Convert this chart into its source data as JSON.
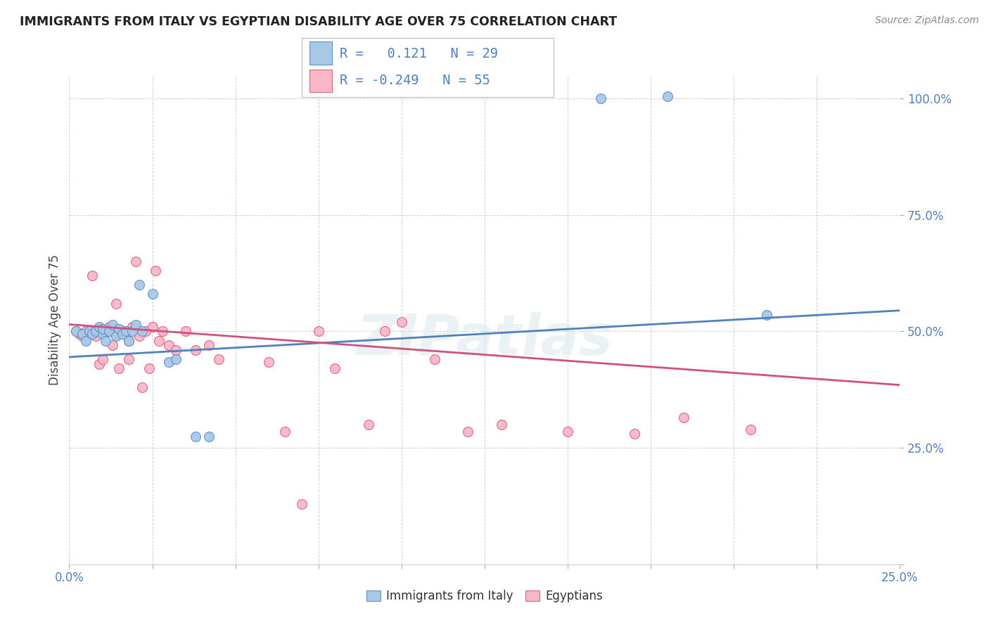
{
  "title": "IMMIGRANTS FROM ITALY VS EGYPTIAN DISABILITY AGE OVER 75 CORRELATION CHART",
  "source": "Source: ZipAtlas.com",
  "ylabel": "Disability Age Over 75",
  "xlim": [
    0.0,
    0.25
  ],
  "ylim": [
    0.0,
    1.05
  ],
  "ytick_vals": [
    0.0,
    0.25,
    0.5,
    0.75,
    1.0
  ],
  "xtick_vals": [
    0.0,
    0.025,
    0.05,
    0.075,
    0.1,
    0.125,
    0.15,
    0.175,
    0.2,
    0.225,
    0.25
  ],
  "blue_color": "#a8c8e8",
  "blue_edge": "#6090c8",
  "pink_color": "#f8b8c8",
  "pink_edge": "#e06080",
  "line_blue": "#5080c0",
  "line_pink": "#d05080",
  "tick_color": "#5080c0",
  "watermark": "ZIPatlas",
  "legend_R_blue": "0.121",
  "legend_N_blue": "29",
  "legend_R_pink": "-0.249",
  "legend_N_pink": "55",
  "italy_line_y0": 0.445,
  "italy_line_y1": 0.545,
  "egypt_line_y0": 0.515,
  "egypt_line_y1": 0.385,
  "italy_x": [
    0.002,
    0.004,
    0.005,
    0.006,
    0.007,
    0.008,
    0.009,
    0.01,
    0.01,
    0.011,
    0.012,
    0.013,
    0.014,
    0.015,
    0.016,
    0.017,
    0.018,
    0.019,
    0.02,
    0.021,
    0.022,
    0.025,
    0.03,
    0.032,
    0.038,
    0.042,
    0.16,
    0.18,
    0.21
  ],
  "italy_y": [
    0.5,
    0.495,
    0.48,
    0.5,
    0.495,
    0.5,
    0.51,
    0.495,
    0.505,
    0.48,
    0.5,
    0.515,
    0.49,
    0.505,
    0.495,
    0.5,
    0.48,
    0.5,
    0.515,
    0.6,
    0.5,
    0.58,
    0.435,
    0.44,
    0.275,
    0.275,
    1.0,
    1.005,
    0.535
  ],
  "egypt_x": [
    0.002,
    0.003,
    0.004,
    0.005,
    0.006,
    0.007,
    0.008,
    0.008,
    0.009,
    0.009,
    0.01,
    0.01,
    0.011,
    0.012,
    0.012,
    0.013,
    0.013,
    0.014,
    0.015,
    0.015,
    0.016,
    0.017,
    0.018,
    0.018,
    0.019,
    0.02,
    0.021,
    0.022,
    0.023,
    0.024,
    0.025,
    0.026,
    0.027,
    0.028,
    0.03,
    0.032,
    0.035,
    0.038,
    0.042,
    0.045,
    0.06,
    0.065,
    0.07,
    0.075,
    0.08,
    0.09,
    0.095,
    0.1,
    0.11,
    0.12,
    0.13,
    0.15,
    0.17,
    0.185,
    0.205
  ],
  "egypt_y": [
    0.5,
    0.495,
    0.49,
    0.5,
    0.495,
    0.62,
    0.5,
    0.49,
    0.505,
    0.43,
    0.5,
    0.44,
    0.5,
    0.51,
    0.5,
    0.47,
    0.505,
    0.56,
    0.495,
    0.42,
    0.5,
    0.5,
    0.44,
    0.48,
    0.51,
    0.65,
    0.49,
    0.38,
    0.5,
    0.42,
    0.51,
    0.63,
    0.48,
    0.5,
    0.47,
    0.46,
    0.5,
    0.46,
    0.47,
    0.44,
    0.435,
    0.285,
    0.13,
    0.5,
    0.42,
    0.3,
    0.5,
    0.52,
    0.44,
    0.285,
    0.3,
    0.285,
    0.28,
    0.315,
    0.29
  ]
}
